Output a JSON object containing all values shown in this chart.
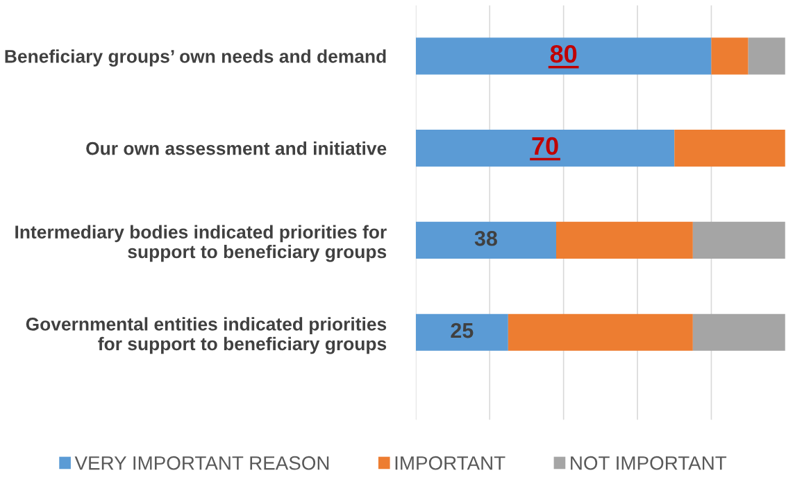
{
  "chart_data": {
    "type": "bar",
    "orientation": "horizontal",
    "stacked": true,
    "categories": [
      "Beneficiary groups’ own needs and demand",
      "Our own assessment and initiative",
      "Intermediary bodies indicated priorities for support to beneficiary groups",
      "Governmental entities indicated priorities for support to beneficiary groups"
    ],
    "series": [
      {
        "name": "VERY IMPORTANT REASON",
        "color": "#5b9bd5",
        "values": [
          80,
          70,
          38,
          25
        ],
        "value_labels": [
          "80",
          "70",
          "38",
          "25"
        ]
      },
      {
        "name": "IMPORTANT",
        "color": "#ed7d31",
        "values": [
          10,
          30,
          37,
          50
        ]
      },
      {
        "name": "NOT IMPORTANT",
        "color": "#a5a5a5",
        "values": [
          10,
          0,
          25,
          25
        ]
      }
    ],
    "xlim": [
      0,
      100
    ],
    "xticks": [
      {
        "value": 0,
        "label": null
      },
      {
        "value": 20,
        "label": null
      },
      {
        "value": 40,
        "label": null
      },
      {
        "value": 60,
        "label": null
      },
      {
        "value": 80,
        "label": null
      }
    ],
    "tick_labels": "y",
    "grid": "x",
    "legend": "bottom"
  }
}
